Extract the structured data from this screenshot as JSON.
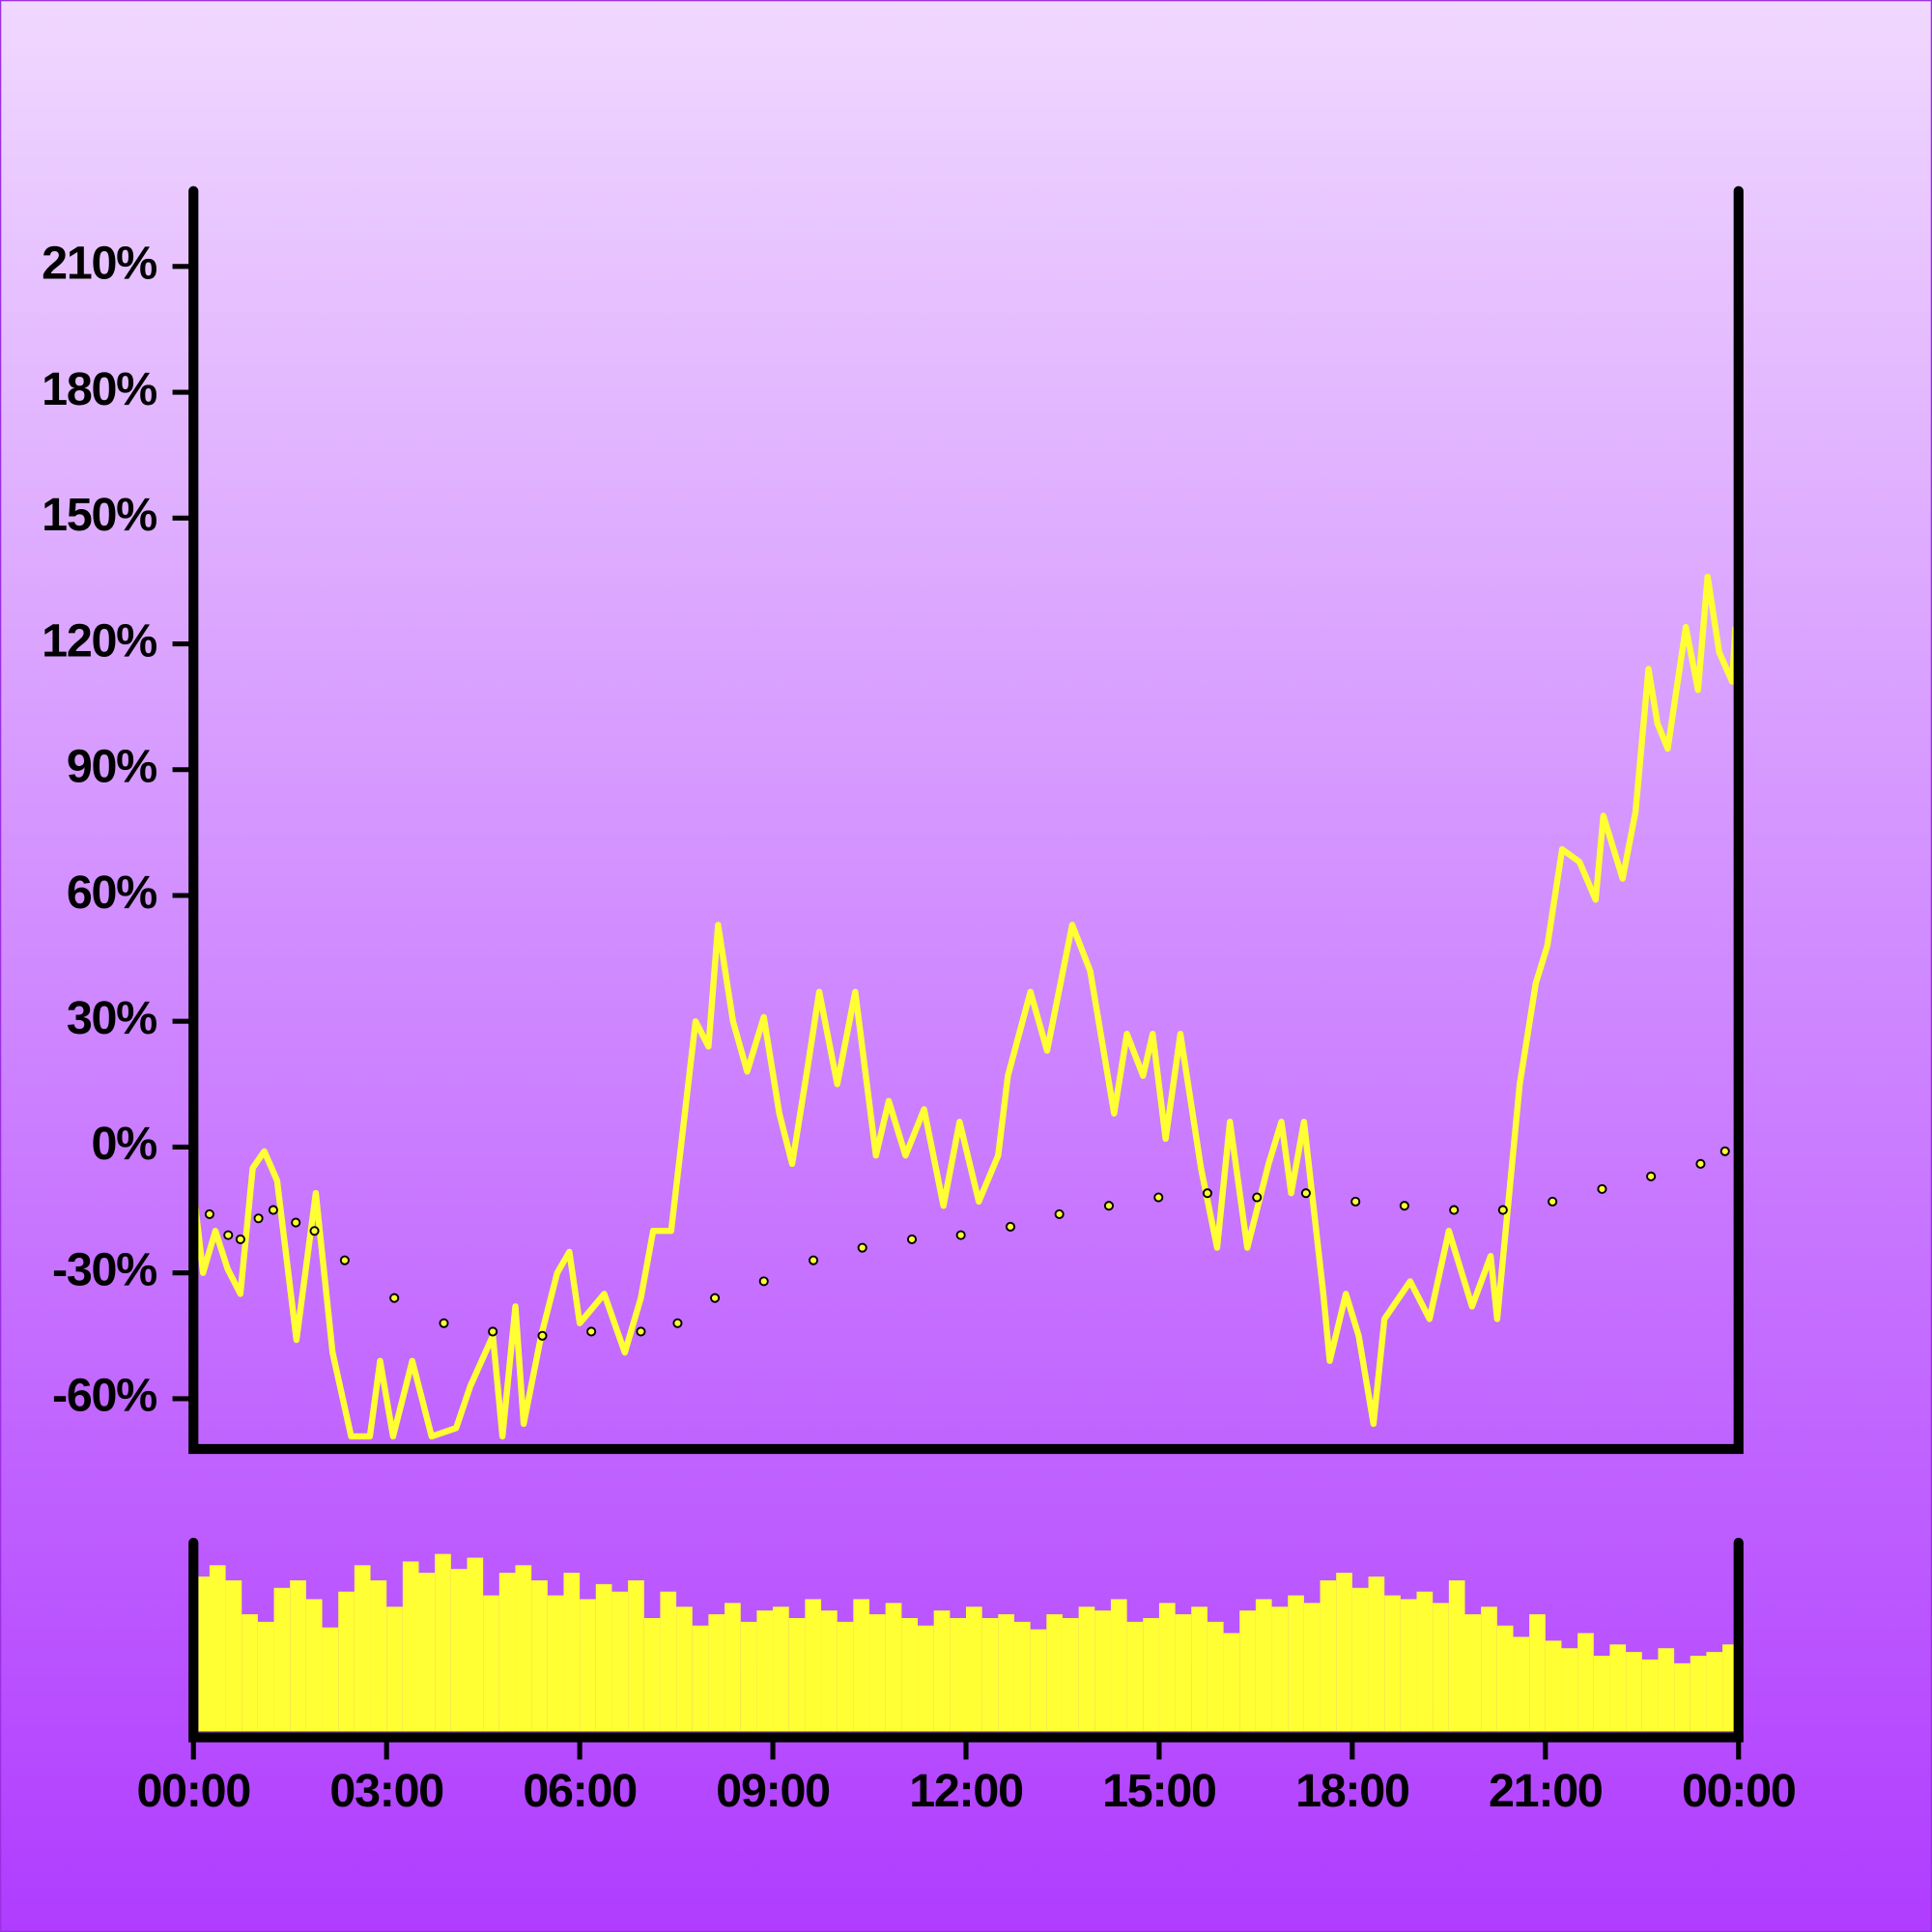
{
  "chart_data": [
    {
      "type": "line",
      "xlim": [
        0,
        24
      ],
      "ylim": [
        -72,
        228
      ],
      "yticks": [
        {
          "value": -60,
          "label": "-60%"
        },
        {
          "value": -30,
          "label": "-30%"
        },
        {
          "value": 0,
          "label": "0%"
        },
        {
          "value": 30,
          "label": "30%"
        },
        {
          "value": 60,
          "label": "60%"
        },
        {
          "value": 90,
          "label": "90%"
        },
        {
          "value": 120,
          "label": "120%"
        },
        {
          "value": 150,
          "label": "150%"
        },
        {
          "value": 180,
          "label": "180%"
        },
        {
          "value": 210,
          "label": "210%"
        }
      ],
      "series": [
        {
          "style": "solid",
          "color": "#ffff33",
          "x": [
            0,
            0.15,
            0.34,
            0.53,
            0.73,
            0.92,
            1.1,
            1.3,
            1.6,
            1.9,
            2.16,
            2.45,
            2.74,
            2.9,
            3.1,
            3.4,
            3.7,
            4.08,
            4.3,
            4.65,
            4.8,
            5.0,
            5.13,
            5.4,
            5.65,
            5.84,
            6.0,
            6.38,
            6.7,
            6.95,
            7.14,
            7.42,
            7.8,
            8.0,
            8.15,
            8.38,
            8.6,
            8.86,
            9.1,
            9.3,
            9.53,
            9.72,
            10.0,
            10.28,
            10.6,
            10.8,
            11.06,
            11.35,
            11.65,
            11.9,
            12.2,
            12.5,
            12.65,
            13.0,
            13.26,
            13.65,
            13.93,
            14.3,
            14.5,
            14.75,
            14.9,
            15.1,
            15.33,
            15.65,
            15.9,
            16.1,
            16.37,
            16.7,
            16.9,
            17.05,
            17.25,
            17.55,
            17.65,
            17.9,
            18.1,
            18.33,
            18.5,
            18.9,
            19.2,
            19.5,
            19.86,
            20.15,
            20.25,
            20.6,
            20.85,
            21.03,
            21.26,
            21.53,
            21.78,
            21.9,
            22.2,
            22.4,
            22.6,
            22.74,
            22.9,
            23.18,
            23.37,
            23.52,
            23.7,
            23.9,
            23.95
          ],
          "values": [
            -10,
            -30,
            -20,
            -29,
            -35,
            -5,
            -1,
            -8,
            -46,
            -11,
            -49,
            -69,
            -69,
            -51,
            -69,
            -51,
            -69,
            -67,
            -57,
            -45,
            -69,
            -38,
            -66,
            -45,
            -30,
            -25,
            -42,
            -35,
            -49,
            -36,
            -20,
            -20,
            30,
            24,
            53,
            30,
            18,
            31,
            8,
            -4,
            18,
            37,
            15,
            37,
            -2,
            11,
            -2,
            9,
            -14,
            6,
            -13,
            -2,
            17,
            37,
            23,
            53,
            42,
            8,
            27,
            17,
            27,
            2,
            27,
            -5,
            -24,
            6,
            -24,
            -4,
            6,
            -11,
            6,
            -35,
            -51,
            -35,
            -45,
            -66,
            -41,
            -32,
            -41,
            -20,
            -38,
            -26,
            -41,
            15,
            39,
            48,
            71,
            68,
            59,
            79,
            64,
            80,
            114,
            101,
            95,
            124,
            109,
            136,
            118,
            111,
            124
          ]
        },
        {
          "style": "dotted",
          "color": "#ffff33",
          "x": [
            0,
            0.25,
            0.54,
            0.73,
            1.01,
            1.24,
            1.59,
            1.88,
            2.35,
            3.12,
            3.89,
            4.65,
            5.42,
            6.18,
            6.95,
            7.52,
            8.1,
            8.86,
            9.63,
            10.39,
            11.16,
            11.92,
            12.69,
            13.45,
            14.22,
            14.99,
            15.75,
            16.52,
            17.28,
            18.05,
            18.81,
            19.58,
            20.34,
            21.11,
            21.88,
            22.64,
            23.41,
            23.79
          ],
          "values": [
            -16,
            -16,
            -21,
            -22,
            -17,
            -15,
            -18,
            -20,
            -27,
            -36,
            -42,
            -44,
            -45,
            -44,
            -44,
            -42,
            -36,
            -32,
            -27,
            -24,
            -22,
            -21,
            -19,
            -16,
            -14,
            -12,
            -11,
            -12,
            -11,
            -13,
            -14,
            -15,
            -15,
            -13,
            -10,
            -7,
            -4,
            -1
          ]
        }
      ]
    },
    {
      "type": "bar",
      "color": "#ffff33",
      "xlim": [
        0,
        24
      ],
      "ylim": [
        0,
        100
      ],
      "xticks": [
        {
          "value": 0,
          "label": "00:00"
        },
        {
          "value": 3,
          "label": "03:00"
        },
        {
          "value": 6,
          "label": "06:00"
        },
        {
          "value": 9,
          "label": "09:00"
        },
        {
          "value": 12,
          "label": "12:00"
        },
        {
          "value": 15,
          "label": "15:00"
        },
        {
          "value": 18,
          "label": "18:00"
        },
        {
          "value": 21,
          "label": "21:00"
        },
        {
          "value": 24,
          "label": "00:00"
        }
      ],
      "x": [
        0.125,
        0.375,
        0.625,
        0.875,
        1.125,
        1.375,
        1.625,
        1.875,
        2.125,
        2.375,
        2.625,
        2.875,
        3.125,
        3.375,
        3.625,
        3.875,
        4.125,
        4.375,
        4.625,
        4.875,
        5.125,
        5.375,
        5.625,
        5.875,
        6.125,
        6.375,
        6.625,
        6.875,
        7.125,
        7.375,
        7.625,
        7.875,
        8.125,
        8.375,
        8.625,
        8.875,
        9.125,
        9.375,
        9.625,
        9.875,
        10.125,
        10.375,
        10.625,
        10.875,
        11.125,
        11.375,
        11.625,
        11.875,
        12.125,
        12.375,
        12.625,
        12.875,
        13.125,
        13.375,
        13.625,
        13.875,
        14.125,
        14.375,
        14.625,
        14.875,
        15.125,
        15.375,
        15.625,
        15.875,
        16.125,
        16.375,
        16.625,
        16.875,
        17.125,
        17.375,
        17.625,
        17.875,
        18.125,
        18.375,
        18.625,
        18.875,
        19.125,
        19.375,
        19.625,
        19.875,
        20.125,
        20.375,
        20.625,
        20.875,
        21.125,
        21.375,
        21.625,
        21.875,
        22.125,
        22.375,
        22.625,
        22.875,
        23.125,
        23.375,
        23.625,
        23.875
      ],
      "values": [
        82,
        88,
        80,
        62,
        58,
        76,
        80,
        70,
        55,
        74,
        88,
        80,
        66,
        90,
        84,
        94,
        86,
        92,
        72,
        84,
        88,
        80,
        72,
        84,
        70,
        78,
        74,
        80,
        60,
        74,
        66,
        56,
        62,
        68,
        58,
        64,
        66,
        60,
        70,
        64,
        58,
        70,
        62,
        68,
        60,
        56,
        64,
        60,
        66,
        60,
        62,
        58,
        54,
        62,
        60,
        66,
        64,
        70,
        58,
        60,
        68,
        62,
        66,
        58,
        52,
        64,
        70,
        66,
        72,
        68,
        80,
        84,
        76,
        82,
        72,
        70,
        74,
        68,
        80,
        62,
        66,
        56,
        50,
        62,
        48,
        44,
        52,
        40,
        46,
        42,
        38,
        44,
        36,
        40,
        42,
        46
      ]
    }
  ]
}
